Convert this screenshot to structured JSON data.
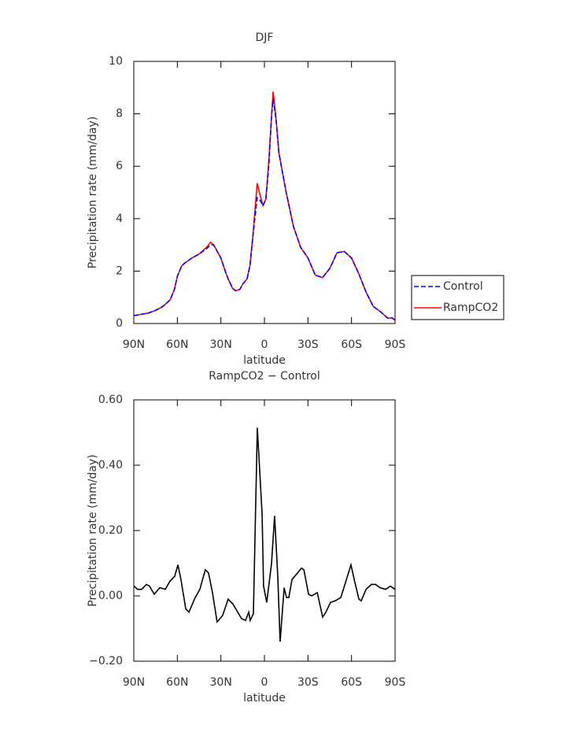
{
  "chart_data": [
    {
      "type": "line",
      "title": "DJF",
      "xlabel": "latitude",
      "ylabel": "Precipitation rate (mm/day)",
      "x": [
        90,
        85,
        80,
        75,
        70,
        65,
        62,
        60,
        57,
        55,
        50,
        45,
        40,
        37,
        35,
        30,
        27,
        25,
        22,
        20,
        17,
        15,
        12,
        10,
        8,
        5,
        3,
        1,
        -1,
        -3,
        -5,
        -6,
        -8,
        -10,
        -15,
        -20,
        -25,
        -30,
        -35,
        -40,
        -45,
        -50,
        -55,
        -60,
        -65,
        -70,
        -75,
        -80,
        -85,
        -88,
        -90
      ],
      "series": [
        {
          "name": "Control",
          "color": "#0000ff",
          "dash": "dashed",
          "values": [
            0.3,
            0.35,
            0.4,
            0.5,
            0.65,
            0.9,
            1.3,
            1.8,
            2.2,
            2.3,
            2.5,
            2.65,
            2.85,
            3.0,
            3.0,
            2.5,
            2.0,
            1.7,
            1.35,
            1.25,
            1.3,
            1.5,
            1.7,
            2.2,
            3.3,
            4.8,
            4.7,
            4.5,
            4.75,
            6.0,
            8.0,
            8.55,
            7.8,
            6.5,
            5.0,
            3.7,
            2.9,
            2.5,
            1.85,
            1.75,
            2.1,
            2.7,
            2.75,
            2.5,
            1.9,
            1.2,
            0.65,
            0.45,
            0.2,
            0.22,
            0.12
          ]
        },
        {
          "name": "RampCO2",
          "color": "#ff0000",
          "dash": "solid",
          "values": [
            0.3,
            0.35,
            0.4,
            0.5,
            0.65,
            0.9,
            1.3,
            1.8,
            2.2,
            2.3,
            2.5,
            2.65,
            2.9,
            3.1,
            3.0,
            2.5,
            2.0,
            1.7,
            1.35,
            1.25,
            1.3,
            1.5,
            1.7,
            2.2,
            3.3,
            5.35,
            4.9,
            4.5,
            4.75,
            6.2,
            8.0,
            8.85,
            7.8,
            6.5,
            5.0,
            3.7,
            2.9,
            2.5,
            1.85,
            1.75,
            2.1,
            2.7,
            2.75,
            2.5,
            1.9,
            1.2,
            0.65,
            0.45,
            0.2,
            0.22,
            0.12
          ]
        }
      ],
      "xlim": [
        90,
        -90
      ],
      "xticks": [
        {
          "value": 90,
          "label": "90N"
        },
        {
          "value": 60,
          "label": "60N"
        },
        {
          "value": 30,
          "label": "30N"
        },
        0,
        {
          "value": -30,
          "label": "30S"
        },
        {
          "value": -60,
          "label": "60S"
        },
        {
          "value": -90,
          "label": "90S"
        }
      ],
      "ylim": [
        0,
        10
      ],
      "yticks": [
        0,
        2,
        4,
        6,
        8,
        10
      ],
      "legend": "right"
    },
    {
      "type": "line",
      "title": "RampCO2 − Control",
      "xlabel": "latitude",
      "ylabel": "Precipitation rate (mm/day)",
      "x": [
        90,
        87.3,
        84.6,
        81.3,
        79.2,
        75.9,
        72.1,
        68.3,
        65.1,
        61.8,
        59.6,
        57.5,
        54.2,
        52.0,
        47.7,
        44.5,
        40.7,
        38.5,
        35.8,
        32.6,
        28.8,
        25.0,
        21.7,
        18.4,
        15.7,
        13.0,
        10.8,
        9.8,
        7.6,
        4.9,
        1.6,
        0.6,
        -1.6,
        -4.9,
        -7.0,
        -9.2,
        -10.8,
        -13.6,
        -15.2,
        -16.8,
        -19.0,
        -22.8,
        -25.5,
        -27.2,
        -30.4,
        -32.6,
        -36.4,
        -40.1,
        -42.3,
        -45.5,
        -48.8,
        -52.6,
        -55.8,
        -59.6,
        -62.4,
        -65.1,
        -66.7,
        -70.0,
        -73.7,
        -76.5,
        -79.7,
        -83.5,
        -86.8,
        -90
      ],
      "values": [
        0.03,
        0.02,
        0.02,
        0.035,
        0.03,
        0.005,
        0.025,
        0.02,
        0.045,
        0.06,
        0.095,
        0.05,
        -0.04,
        -0.05,
        -0.005,
        0.02,
        0.08,
        0.07,
        0.01,
        -0.08,
        -0.06,
        -0.01,
        -0.025,
        -0.05,
        -0.07,
        -0.075,
        -0.05,
        -0.075,
        -0.055,
        0.515,
        0.25,
        0.03,
        -0.02,
        0.1,
        0.245,
        0.06,
        -0.14,
        0.025,
        -0.005,
        -0.005,
        0.05,
        0.07,
        0.085,
        0.08,
        0.005,
        0.0,
        0.01,
        -0.065,
        -0.05,
        -0.02,
        -0.015,
        -0.005,
        0.04,
        0.095,
        0.04,
        -0.01,
        -0.015,
        0.02,
        0.035,
        0.035,
        0.025,
        0.02,
        0.03,
        0.02
      ],
      "color": "#000000",
      "xlim": [
        90,
        -90
      ],
      "xticks": [
        {
          "value": 90,
          "label": "90N"
        },
        {
          "value": 60,
          "label": "60N"
        },
        {
          "value": 30,
          "label": "30N"
        },
        0,
        {
          "value": -30,
          "label": "30S"
        },
        {
          "value": -60,
          "label": "60S"
        },
        {
          "value": -90,
          "label": "90S"
        }
      ],
      "ylim": [
        -0.2,
        0.6
      ],
      "yticks": [
        {
          "value": -0.2,
          "label": "−0.20"
        },
        {
          "value": 0,
          "label": "0.00"
        },
        {
          "value": 0.2,
          "label": "0.20"
        },
        {
          "value": 0.4,
          "label": "0.40"
        },
        {
          "value": 0.6,
          "label": "0.60"
        }
      ]
    }
  ]
}
